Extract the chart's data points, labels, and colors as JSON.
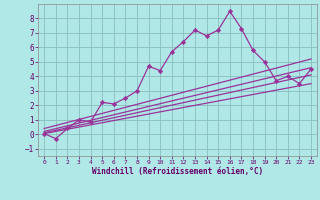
{
  "xlabel": "Windchill (Refroidissement éolien,°C)",
  "background_color": "#b0e8e8",
  "grid_color": "#8abcbc",
  "line_color": "#993399",
  "xlim": [
    -0.5,
    23.5
  ],
  "ylim": [
    -1.5,
    9.0
  ],
  "xticks": [
    0,
    1,
    2,
    3,
    4,
    5,
    6,
    7,
    8,
    9,
    10,
    11,
    12,
    13,
    14,
    15,
    16,
    17,
    18,
    19,
    20,
    21,
    22,
    23
  ],
  "yticks": [
    -1,
    0,
    1,
    2,
    3,
    4,
    5,
    6,
    7,
    8
  ],
  "main_x": [
    0,
    1,
    2,
    3,
    4,
    5,
    6,
    7,
    8,
    9,
    10,
    11,
    12,
    13,
    14,
    15,
    16,
    17,
    18,
    19,
    20,
    21,
    22,
    23
  ],
  "main_y": [
    0.05,
    -0.3,
    0.4,
    1.0,
    0.85,
    2.2,
    2.1,
    2.5,
    3.0,
    4.7,
    4.4,
    5.7,
    6.4,
    7.2,
    6.8,
    7.2,
    8.5,
    7.3,
    5.8,
    5.0,
    3.7,
    4.0,
    3.5,
    4.5
  ],
  "line1_x": [
    0,
    23
  ],
  "line1_y": [
    0.05,
    3.5
  ],
  "line2_x": [
    0,
    23
  ],
  "line2_y": [
    0.1,
    4.1
  ],
  "line3_x": [
    0,
    23
  ],
  "line3_y": [
    0.2,
    4.6
  ],
  "line4_x": [
    0,
    23
  ],
  "line4_y": [
    0.4,
    5.2
  ]
}
